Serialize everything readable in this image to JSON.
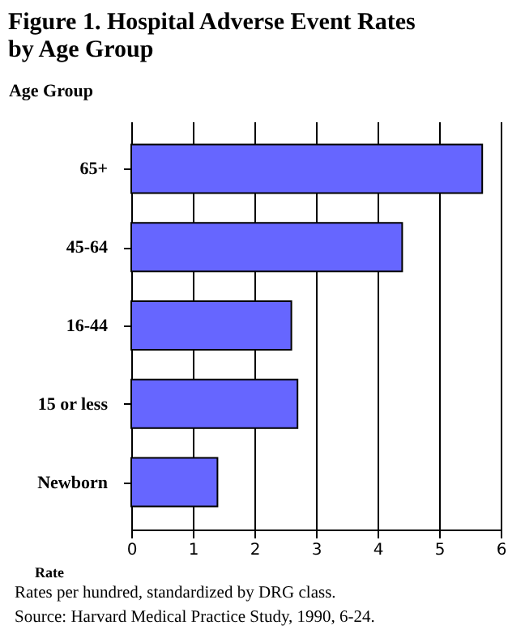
{
  "chart_data": {
    "type": "bar",
    "orientation": "horizontal",
    "title": "Figure 1.  Hospital Adverse Event Rates by Age Group",
    "ylabel": "Age Group",
    "xlabel": "Rate",
    "categories": [
      "65+",
      "45-64",
      "16-44",
      "15 or less",
      "Newborn"
    ],
    "values": [
      5.7,
      4.4,
      2.6,
      2.7,
      1.4
    ],
    "color": "#6666ff",
    "xlim": [
      0,
      6
    ],
    "xticks": [
      0,
      1,
      2,
      3,
      4,
      5,
      6
    ],
    "grid": "x",
    "annotations": [
      "Rates per hundred, standardized by DRG class.",
      "Source:  Harvard Medical Practice Study, 1990, 6-24."
    ]
  }
}
